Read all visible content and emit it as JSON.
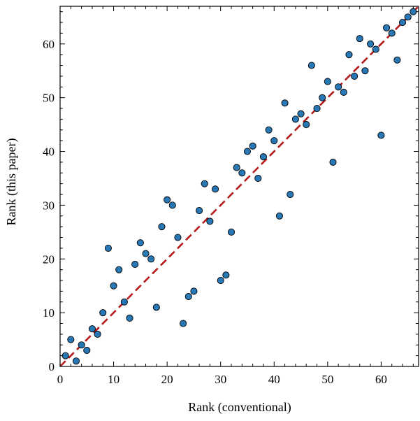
{
  "chart_data": {
    "type": "scatter",
    "title": "",
    "xlabel": "Rank (conventional)",
    "ylabel": "Rank (this paper)",
    "xlim": [
      0,
      67
    ],
    "ylim": [
      0,
      67
    ],
    "x_ticks": [
      0,
      10,
      20,
      30,
      40,
      50,
      60
    ],
    "y_ticks": [
      0,
      10,
      20,
      30,
      40,
      50,
      60
    ],
    "grid": false,
    "point_color": "#2878b5",
    "point_edge_color": "#000000",
    "reference_line": {
      "style": "dashed",
      "color": "#b31b1b",
      "from": [
        0,
        0
      ],
      "to": [
        67,
        67
      ]
    },
    "points": [
      [
        1,
        2
      ],
      [
        2,
        5
      ],
      [
        3,
        1
      ],
      [
        4,
        4
      ],
      [
        5,
        3
      ],
      [
        6,
        7
      ],
      [
        7,
        6
      ],
      [
        8,
        10
      ],
      [
        9,
        22
      ],
      [
        10,
        15
      ],
      [
        11,
        18
      ],
      [
        12,
        12
      ],
      [
        13,
        9
      ],
      [
        14,
        19
      ],
      [
        15,
        23
      ],
      [
        16,
        21
      ],
      [
        17,
        20
      ],
      [
        18,
        11
      ],
      [
        19,
        26
      ],
      [
        20,
        31
      ],
      [
        21,
        30
      ],
      [
        22,
        24
      ],
      [
        23,
        8
      ],
      [
        24,
        13
      ],
      [
        25,
        14
      ],
      [
        26,
        29
      ],
      [
        27,
        34
      ],
      [
        28,
        27
      ],
      [
        29,
        33
      ],
      [
        30,
        16
      ],
      [
        31,
        17
      ],
      [
        32,
        25
      ],
      [
        33,
        37
      ],
      [
        34,
        36
      ],
      [
        35,
        40
      ],
      [
        36,
        41
      ],
      [
        37,
        35
      ],
      [
        38,
        39
      ],
      [
        39,
        44
      ],
      [
        40,
        42
      ],
      [
        41,
        28
      ],
      [
        42,
        49
      ],
      [
        43,
        32
      ],
      [
        44,
        46
      ],
      [
        45,
        47
      ],
      [
        46,
        45
      ],
      [
        47,
        56
      ],
      [
        48,
        48
      ],
      [
        49,
        50
      ],
      [
        50,
        53
      ],
      [
        51,
        38
      ],
      [
        52,
        52
      ],
      [
        53,
        51
      ],
      [
        54,
        58
      ],
      [
        55,
        54
      ],
      [
        56,
        61
      ],
      [
        57,
        55
      ],
      [
        58,
        60
      ],
      [
        59,
        59
      ],
      [
        60,
        43
      ],
      [
        61,
        63
      ],
      [
        62,
        62
      ],
      [
        63,
        57
      ],
      [
        64,
        64
      ],
      [
        65,
        65
      ],
      [
        66,
        66
      ]
    ]
  }
}
